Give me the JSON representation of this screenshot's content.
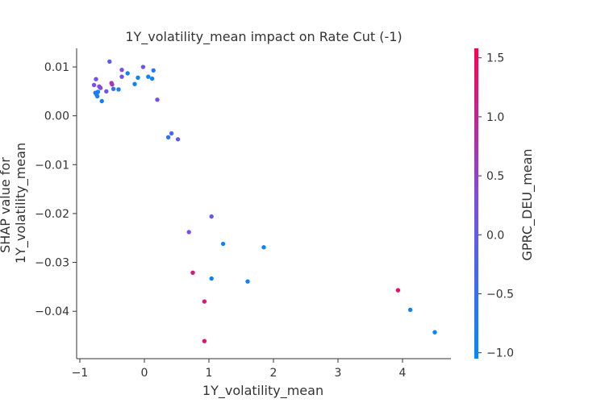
{
  "chart_data": {
    "type": "scatter",
    "title": "1Y_volatility_mean impact on Rate Cut (-1)",
    "xlabel": "1Y_volatility_mean",
    "ylabel_lines": [
      "SHAP value for",
      "1Y_volatility_mean"
    ],
    "xlim": [
      -1.05,
      4.75
    ],
    "ylim": [
      -0.0497,
      0.0138
    ],
    "x_ticks": [
      -1,
      0,
      1,
      2,
      3,
      4
    ],
    "x_tick_labels": [
      "−1",
      "0",
      "1",
      "2",
      "3",
      "4"
    ],
    "y_ticks": [
      0.01,
      0.0,
      -0.01,
      -0.02,
      -0.03,
      -0.04
    ],
    "y_tick_labels": [
      "0.01",
      "0.00",
      "−0.01",
      "−0.02",
      "−0.03",
      "−0.04"
    ],
    "grid": false,
    "colorbar": {
      "label": "GPRC_DEU_mean",
      "range": [
        -1.05,
        1.58
      ],
      "ticks": [
        1.5,
        1.0,
        0.5,
        0.0,
        -0.5,
        -1.0
      ],
      "tick_labels": [
        "1.5",
        "1.0",
        "0.5",
        "0.0",
        "−0.5",
        "−1.0"
      ],
      "colors": [
        "#008afb",
        "#7b4ee8",
        "#ff0052"
      ]
    },
    "points": [
      {
        "x": -0.78,
        "y": 0.0063,
        "c": 0.25
      },
      {
        "x": -0.76,
        "y": 0.0047,
        "c": -0.6
      },
      {
        "x": -0.75,
        "y": 0.0075,
        "c": 0.2
      },
      {
        "x": -0.74,
        "y": 0.0043,
        "c": -0.7
      },
      {
        "x": -0.73,
        "y": 0.004,
        "c": -0.8
      },
      {
        "x": -0.72,
        "y": 0.0049,
        "c": -0.9
      },
      {
        "x": -0.7,
        "y": 0.006,
        "c": 0.3
      },
      {
        "x": -0.68,
        "y": 0.0057,
        "c": 0.4
      },
      {
        "x": -0.66,
        "y": 0.003,
        "c": -0.9
      },
      {
        "x": -0.59,
        "y": 0.005,
        "c": 0.1
      },
      {
        "x": -0.54,
        "y": 0.0111,
        "c": -0.1
      },
      {
        "x": -0.51,
        "y": 0.0067,
        "c": 0.8
      },
      {
        "x": -0.5,
        "y": 0.0064,
        "c": 0.6
      },
      {
        "x": -0.48,
        "y": 0.0055,
        "c": -0.5
      },
      {
        "x": -0.4,
        "y": 0.0054,
        "c": -0.8
      },
      {
        "x": -0.35,
        "y": 0.0094,
        "c": 0.3
      },
      {
        "x": -0.35,
        "y": 0.008,
        "c": 0.2
      },
      {
        "x": -0.26,
        "y": 0.0087,
        "c": -0.9
      },
      {
        "x": -0.15,
        "y": 0.0065,
        "c": -0.9
      },
      {
        "x": -0.1,
        "y": 0.0078,
        "c": -0.8
      },
      {
        "x": -0.02,
        "y": 0.01,
        "c": 0.1
      },
      {
        "x": 0.06,
        "y": 0.008,
        "c": -0.9
      },
      {
        "x": 0.12,
        "y": 0.0076,
        "c": -0.9
      },
      {
        "x": 0.14,
        "y": 0.0093,
        "c": -0.7
      },
      {
        "x": 0.2,
        "y": 0.0033,
        "c": 0.2
      },
      {
        "x": 0.37,
        "y": -0.0044,
        "c": -0.5
      },
      {
        "x": 0.42,
        "y": -0.0036,
        "c": -0.2
      },
      {
        "x": 0.52,
        "y": -0.0048,
        "c": 0.0
      },
      {
        "x": 0.69,
        "y": -0.0238,
        "c": 0.25
      },
      {
        "x": 0.75,
        "y": -0.0321,
        "c": 1.2
      },
      {
        "x": 0.93,
        "y": -0.038,
        "c": 1.2
      },
      {
        "x": 0.93,
        "y": -0.0461,
        "c": 1.3
      },
      {
        "x": 1.04,
        "y": -0.0206,
        "c": 0.0
      },
      {
        "x": 1.04,
        "y": -0.0333,
        "c": -0.9
      },
      {
        "x": 1.22,
        "y": -0.0262,
        "c": -0.9
      },
      {
        "x": 1.6,
        "y": -0.0339,
        "c": -0.9
      },
      {
        "x": 1.85,
        "y": -0.0269,
        "c": -0.9
      },
      {
        "x": 3.93,
        "y": -0.0357,
        "c": 1.4
      },
      {
        "x": 4.12,
        "y": -0.0397,
        "c": -0.9
      },
      {
        "x": 4.5,
        "y": -0.0443,
        "c": -0.9
      }
    ]
  }
}
